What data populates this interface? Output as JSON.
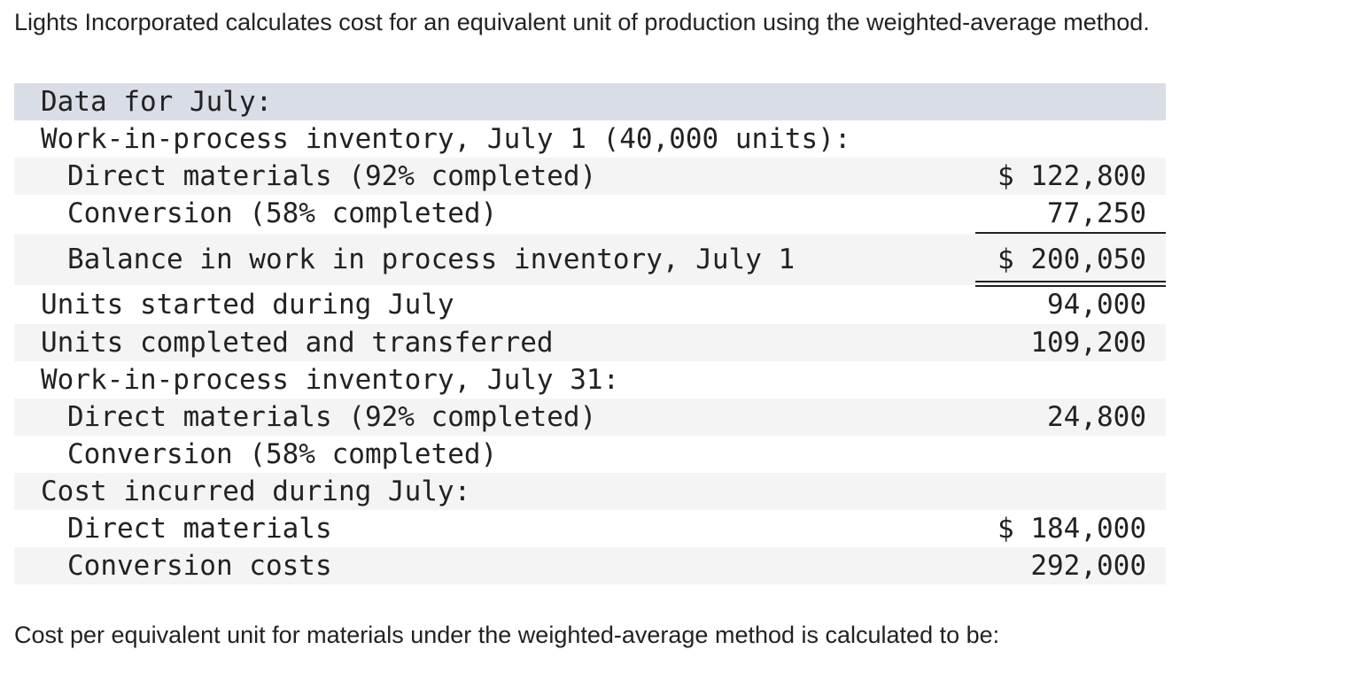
{
  "intro": "Lights Incorporated calculates cost for an equivalent unit of production using the weighted-average method.",
  "table": {
    "rows": [
      {
        "label": "Data for July:"
      },
      {
        "label": "Work-in-process inventory, July 1 (40,000 units):"
      },
      {
        "label": "Direct materials (92% completed)",
        "amount": "$ 122,800"
      },
      {
        "label": "Conversion (58% completed)",
        "amount": "77,250"
      },
      {
        "label": "Balance in work in process inventory, July 1",
        "amount": "$ 200,050"
      },
      {
        "label": "Units started during July",
        "amount": "94,000"
      },
      {
        "label": "Units completed and transferred",
        "amount": "109,200"
      },
      {
        "label": "Work-in-process inventory, July 31:"
      },
      {
        "label": "Direct materials (92% completed)",
        "amount": "24,800"
      },
      {
        "label": "Conversion (58% completed)"
      },
      {
        "label": "Cost incurred during July:"
      },
      {
        "label": "Direct materials",
        "amount": "$ 184,000"
      },
      {
        "label": "Conversion costs",
        "amount": "292,000"
      }
    ]
  },
  "question": "Cost per equivalent unit for materials under the weighted-average method is calculated to be:"
}
